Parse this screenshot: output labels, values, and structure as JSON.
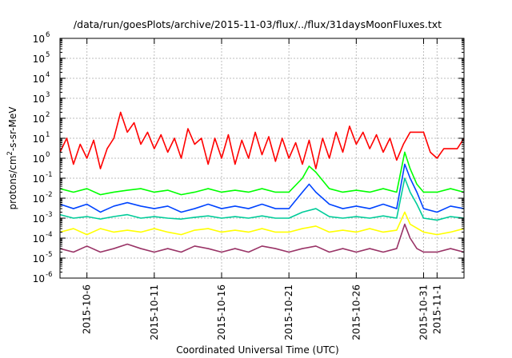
{
  "chart_data": {
    "type": "line",
    "title": "/data/run/goesPlots/archive/2015-11-03/flux/../flux/31daysMoonFluxes.txt",
    "xlabel": "Coordinated Universal Time (UTC)",
    "ylabel": {
      "base": "protons/cm",
      "sup": "2",
      "rest": "-s-sr-MeV"
    },
    "yscale": "log",
    "ylim": [
      1e-06,
      1000000.0
    ],
    "y_tick_values": [
      1e-06,
      1e-05,
      0.0001,
      0.001,
      0.01,
      0.1,
      1,
      10,
      100,
      1000.0,
      10000.0,
      100000.0,
      1000000.0
    ],
    "y_tick_labels": [
      {
        "base": "10",
        "exp": "-6"
      },
      {
        "base": "10",
        "exp": "-5"
      },
      {
        "base": "10",
        "exp": "-4"
      },
      {
        "base": "10",
        "exp": "-3"
      },
      {
        "base": "10",
        "exp": "-2"
      },
      {
        "base": "10",
        "exp": "-1"
      },
      {
        "base": "10",
        "exp": "0"
      },
      {
        "base": "10",
        "exp": "1"
      },
      {
        "base": "10",
        "exp": "2"
      },
      {
        "base": "10",
        "exp": "3"
      },
      {
        "base": "10",
        "exp": "4"
      },
      {
        "base": "10",
        "exp": "5"
      },
      {
        "base": "10",
        "exp": "6"
      }
    ],
    "xlim": [
      "2015-10-04",
      "2015-11-03"
    ],
    "x_ticks": [
      {
        "date": "2015-10-06",
        "label": "2015-10-6"
      },
      {
        "date": "2015-10-11",
        "label": "2015-10-11"
      },
      {
        "date": "2015-10-16",
        "label": "2015-10-16"
      },
      {
        "date": "2015-10-21",
        "label": "2015-10-21"
      },
      {
        "date": "2015-10-26",
        "label": "2015-10-26"
      },
      {
        "date": "2015-10-31",
        "label": "2015-10-31"
      },
      {
        "date": "2015-11-01",
        "label": "2015-11-1"
      }
    ],
    "grid": true,
    "series": [
      {
        "color": "#ff0000",
        "values": [
          [
            "2015-10-04",
            2
          ],
          [
            "2015-10-04.5",
            10
          ],
          [
            "2015-10-05",
            0.5
          ],
          [
            "2015-10-05.5",
            5
          ],
          [
            "2015-10-06",
            1
          ],
          [
            "2015-10-06.5",
            8
          ],
          [
            "2015-10-07",
            0.3
          ],
          [
            "2015-10-07.5",
            3
          ],
          [
            "2015-10-08",
            10
          ],
          [
            "2015-10-08.5",
            200
          ],
          [
            "2015-10-09",
            20
          ],
          [
            "2015-10-09.5",
            60
          ],
          [
            "2015-10-10",
            5
          ],
          [
            "2015-10-10.5",
            20
          ],
          [
            "2015-10-11",
            3
          ],
          [
            "2015-10-11.5",
            15
          ],
          [
            "2015-10-12",
            2
          ],
          [
            "2015-10-12.5",
            10
          ],
          [
            "2015-10-13",
            1
          ],
          [
            "2015-10-13.5",
            30
          ],
          [
            "2015-10-14",
            5
          ],
          [
            "2015-10-14.5",
            10
          ],
          [
            "2015-10-15",
            0.5
          ],
          [
            "2015-10-15.5",
            10
          ],
          [
            "2015-10-16",
            1
          ],
          [
            "2015-10-16.5",
            15
          ],
          [
            "2015-10-17",
            0.5
          ],
          [
            "2015-10-17.5",
            8
          ],
          [
            "2015-10-18",
            1
          ],
          [
            "2015-10-18.5",
            20
          ],
          [
            "2015-10-19",
            1.5
          ],
          [
            "2015-10-19.5",
            12
          ],
          [
            "2015-10-20",
            0.7
          ],
          [
            "2015-10-20.5",
            10
          ],
          [
            "2015-10-21",
            1
          ],
          [
            "2015-10-21.5",
            6
          ],
          [
            "2015-10-22",
            0.5
          ],
          [
            "2015-10-22.5",
            8
          ],
          [
            "2015-10-23",
            0.3
          ],
          [
            "2015-10-23.5",
            10
          ],
          [
            "2015-10-24",
            1
          ],
          [
            "2015-10-24.5",
            20
          ],
          [
            "2015-10-25",
            2
          ],
          [
            "2015-10-25.5",
            40
          ],
          [
            "2015-10-26",
            5
          ],
          [
            "2015-10-26.5",
            20
          ],
          [
            "2015-10-27",
            3
          ],
          [
            "2015-10-27.5",
            15
          ],
          [
            "2015-10-28",
            2
          ],
          [
            "2015-10-28.5",
            10
          ],
          [
            "2015-10-29",
            0.8
          ],
          [
            "2015-10-29.5",
            5
          ],
          [
            "2015-10-30",
            20
          ],
          [
            "2015-10-30.5",
            20
          ],
          [
            "2015-10-31",
            20
          ],
          [
            "2015-10-31.5",
            2
          ],
          [
            "2015-11-01",
            1
          ],
          [
            "2015-11-01.5",
            3
          ],
          [
            "2015-11-02",
            3
          ],
          [
            "2015-11-02.5",
            3
          ],
          [
            "2015-11-03",
            10
          ]
        ]
      },
      {
        "color": "#00ff00",
        "values": [
          [
            "2015-10-04",
            0.03
          ],
          [
            "2015-10-05",
            0.02
          ],
          [
            "2015-10-06",
            0.03
          ],
          [
            "2015-10-07",
            0.015
          ],
          [
            "2015-10-08",
            0.02
          ],
          [
            "2015-10-09",
            0.025
          ],
          [
            "2015-10-10",
            0.03
          ],
          [
            "2015-10-11",
            0.02
          ],
          [
            "2015-10-12",
            0.025
          ],
          [
            "2015-10-13",
            0.015
          ],
          [
            "2015-10-14",
            0.02
          ],
          [
            "2015-10-15",
            0.03
          ],
          [
            "2015-10-16",
            0.02
          ],
          [
            "2015-10-17",
            0.025
          ],
          [
            "2015-10-18",
            0.02
          ],
          [
            "2015-10-19",
            0.03
          ],
          [
            "2015-10-20",
            0.02
          ],
          [
            "2015-10-21",
            0.02
          ],
          [
            "2015-10-22",
            0.1
          ],
          [
            "2015-10-22.5",
            0.4
          ],
          [
            "2015-10-23",
            0.2
          ],
          [
            "2015-10-24",
            0.03
          ],
          [
            "2015-10-25",
            0.02
          ],
          [
            "2015-10-26",
            0.025
          ],
          [
            "2015-10-27",
            0.02
          ],
          [
            "2015-10-28",
            0.03
          ],
          [
            "2015-10-29",
            0.02
          ],
          [
            "2015-10-29.6",
            2
          ],
          [
            "2015-10-30",
            0.3
          ],
          [
            "2015-10-30.5",
            0.05
          ],
          [
            "2015-10-31",
            0.02
          ],
          [
            "2015-11-01",
            0.02
          ],
          [
            "2015-11-02",
            0.03
          ],
          [
            "2015-11-03",
            0.02
          ]
        ]
      },
      {
        "color": "#0044ff",
        "values": [
          [
            "2015-10-04",
            0.005
          ],
          [
            "2015-10-05",
            0.003
          ],
          [
            "2015-10-06",
            0.005
          ],
          [
            "2015-10-07",
            0.002
          ],
          [
            "2015-10-08",
            0.004
          ],
          [
            "2015-10-09",
            0.006
          ],
          [
            "2015-10-10",
            0.004
          ],
          [
            "2015-10-11",
            0.003
          ],
          [
            "2015-10-12",
            0.004
          ],
          [
            "2015-10-13",
            0.002
          ],
          [
            "2015-10-14",
            0.003
          ],
          [
            "2015-10-15",
            0.005
          ],
          [
            "2015-10-16",
            0.003
          ],
          [
            "2015-10-17",
            0.004
          ],
          [
            "2015-10-18",
            0.003
          ],
          [
            "2015-10-19",
            0.005
          ],
          [
            "2015-10-20",
            0.003
          ],
          [
            "2015-10-21",
            0.003
          ],
          [
            "2015-10-22",
            0.02
          ],
          [
            "2015-10-22.5",
            0.05
          ],
          [
            "2015-10-23",
            0.02
          ],
          [
            "2015-10-24",
            0.005
          ],
          [
            "2015-10-25",
            0.003
          ],
          [
            "2015-10-26",
            0.004
          ],
          [
            "2015-10-27",
            0.003
          ],
          [
            "2015-10-28",
            0.005
          ],
          [
            "2015-10-29",
            0.003
          ],
          [
            "2015-10-29.6",
            0.5
          ],
          [
            "2015-10-30",
            0.1
          ],
          [
            "2015-10-30.5",
            0.02
          ],
          [
            "2015-10-31",
            0.003
          ],
          [
            "2015-11-01",
            0.002
          ],
          [
            "2015-11-02",
            0.004
          ],
          [
            "2015-11-03",
            0.003
          ]
        ]
      },
      {
        "color": "#00cc99",
        "values": [
          [
            "2015-10-04",
            0.0015
          ],
          [
            "2015-10-05",
            0.001
          ],
          [
            "2015-10-06",
            0.0012
          ],
          [
            "2015-10-07",
            0.0009
          ],
          [
            "2015-10-08",
            0.0012
          ],
          [
            "2015-10-09",
            0.0015
          ],
          [
            "2015-10-10",
            0.001
          ],
          [
            "2015-10-11",
            0.0012
          ],
          [
            "2015-10-12",
            0.001
          ],
          [
            "2015-10-13",
            0.0009
          ],
          [
            "2015-10-14",
            0.0011
          ],
          [
            "2015-10-15",
            0.0013
          ],
          [
            "2015-10-16",
            0.001
          ],
          [
            "2015-10-17",
            0.0012
          ],
          [
            "2015-10-18",
            0.001
          ],
          [
            "2015-10-19",
            0.0013
          ],
          [
            "2015-10-20",
            0.001
          ],
          [
            "2015-10-21",
            0.001
          ],
          [
            "2015-10-22",
            0.002
          ],
          [
            "2015-10-23",
            0.003
          ],
          [
            "2015-10-24",
            0.0012
          ],
          [
            "2015-10-25",
            0.001
          ],
          [
            "2015-10-26",
            0.0012
          ],
          [
            "2015-10-27",
            0.001
          ],
          [
            "2015-10-28",
            0.0013
          ],
          [
            "2015-10-29",
            0.001
          ],
          [
            "2015-10-29.6",
            0.1
          ],
          [
            "2015-10-30",
            0.02
          ],
          [
            "2015-10-30.5",
            0.005
          ],
          [
            "2015-10-31",
            0.001
          ],
          [
            "2015-11-01",
            0.0008
          ],
          [
            "2015-11-02",
            0.0012
          ],
          [
            "2015-11-03",
            0.001
          ]
        ]
      },
      {
        "color": "#ffff00",
        "values": [
          [
            "2015-10-04",
            0.0002
          ],
          [
            "2015-10-05",
            0.0003
          ],
          [
            "2015-10-06",
            0.00015
          ],
          [
            "2015-10-07",
            0.0003
          ],
          [
            "2015-10-08",
            0.0002
          ],
          [
            "2015-10-09",
            0.00025
          ],
          [
            "2015-10-10",
            0.0002
          ],
          [
            "2015-10-11",
            0.0003
          ],
          [
            "2015-10-12",
            0.0002
          ],
          [
            "2015-10-13",
            0.00015
          ],
          [
            "2015-10-14",
            0.00025
          ],
          [
            "2015-10-15",
            0.0003
          ],
          [
            "2015-10-16",
            0.0002
          ],
          [
            "2015-10-17",
            0.00025
          ],
          [
            "2015-10-18",
            0.0002
          ],
          [
            "2015-10-19",
            0.0003
          ],
          [
            "2015-10-20",
            0.0002
          ],
          [
            "2015-10-21",
            0.0002
          ],
          [
            "2015-10-22",
            0.0003
          ],
          [
            "2015-10-23",
            0.0004
          ],
          [
            "2015-10-24",
            0.0002
          ],
          [
            "2015-10-25",
            0.00025
          ],
          [
            "2015-10-26",
            0.0002
          ],
          [
            "2015-10-27",
            0.0003
          ],
          [
            "2015-10-28",
            0.0002
          ],
          [
            "2015-10-29",
            0.00025
          ],
          [
            "2015-10-29.6",
            0.002
          ],
          [
            "2015-10-30",
            0.0005
          ],
          [
            "2015-10-31",
            0.0002
          ],
          [
            "2015-11-01",
            0.00015
          ],
          [
            "2015-11-02",
            0.0002
          ],
          [
            "2015-11-03",
            0.0003
          ]
        ]
      },
      {
        "color": "#993366",
        "values": [
          [
            "2015-10-04",
            3e-05
          ],
          [
            "2015-10-05",
            2e-05
          ],
          [
            "2015-10-06",
            4e-05
          ],
          [
            "2015-10-07",
            2e-05
          ],
          [
            "2015-10-08",
            3e-05
          ],
          [
            "2015-10-09",
            5e-05
          ],
          [
            "2015-10-10",
            3e-05
          ],
          [
            "2015-10-11",
            2e-05
          ],
          [
            "2015-10-12",
            3e-05
          ],
          [
            "2015-10-13",
            2e-05
          ],
          [
            "2015-10-14",
            4e-05
          ],
          [
            "2015-10-15",
            3e-05
          ],
          [
            "2015-10-16",
            2e-05
          ],
          [
            "2015-10-17",
            3e-05
          ],
          [
            "2015-10-18",
            2e-05
          ],
          [
            "2015-10-19",
            4e-05
          ],
          [
            "2015-10-20",
            3e-05
          ],
          [
            "2015-10-21",
            2e-05
          ],
          [
            "2015-10-22",
            3e-05
          ],
          [
            "2015-10-23",
            4e-05
          ],
          [
            "2015-10-24",
            2e-05
          ],
          [
            "2015-10-25",
            3e-05
          ],
          [
            "2015-10-26",
            2e-05
          ],
          [
            "2015-10-27",
            3e-05
          ],
          [
            "2015-10-28",
            2e-05
          ],
          [
            "2015-10-29",
            3e-05
          ],
          [
            "2015-10-29.6",
            0.0005
          ],
          [
            "2015-10-30",
            0.0001
          ],
          [
            "2015-10-30.5",
            3e-05
          ],
          [
            "2015-10-31",
            2e-05
          ],
          [
            "2015-11-01",
            2e-05
          ],
          [
            "2015-11-02",
            3e-05
          ],
          [
            "2015-11-03",
            2e-05
          ]
        ]
      }
    ]
  }
}
